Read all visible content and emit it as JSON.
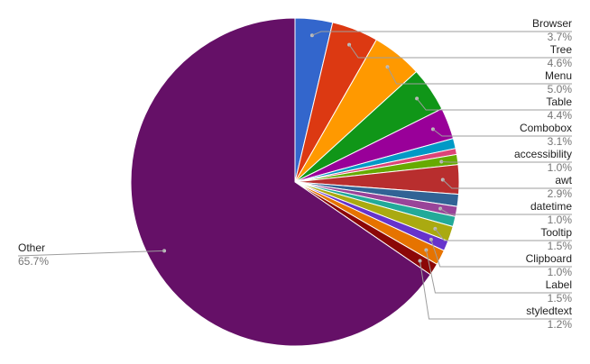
{
  "chart_data": {
    "type": "pie",
    "title": "",
    "slices": [
      {
        "label": "Browser",
        "value": 3.7,
        "display": "3.7%",
        "color": "#3366cc"
      },
      {
        "label": "Tree",
        "value": 4.6,
        "display": "4.6%",
        "color": "#dc3912"
      },
      {
        "label": "Menu",
        "value": 5.0,
        "display": "5.0%",
        "color": "#ff9900"
      },
      {
        "label": "Table",
        "value": 4.4,
        "display": "4.4%",
        "color": "#109618"
      },
      {
        "label": "Combobox",
        "value": 3.1,
        "display": "3.1%",
        "color": "#990099"
      },
      {
        "label": "",
        "value": 1.0,
        "display": "",
        "color": "#0099c6"
      },
      {
        "label": "",
        "value": 0.6,
        "display": "",
        "color": "#dd4477"
      },
      {
        "label": "accessibility",
        "value": 1.0,
        "display": "1.0%",
        "color": "#66aa00"
      },
      {
        "label": "awt",
        "value": 2.9,
        "display": "2.9%",
        "color": "#b82e2e"
      },
      {
        "label": "",
        "value": 1.2,
        "display": "",
        "color": "#316395"
      },
      {
        "label": "datetime",
        "value": 1.0,
        "display": "1.0%",
        "color": "#994499"
      },
      {
        "label": "",
        "value": 1.0,
        "display": "",
        "color": "#22aa99"
      },
      {
        "label": "Tooltip",
        "value": 1.5,
        "display": "1.5%",
        "color": "#aaaa11"
      },
      {
        "label": "Clipboard",
        "value": 1.0,
        "display": "1.0%",
        "color": "#6633cc"
      },
      {
        "label": "Label",
        "value": 1.5,
        "display": "1.5%",
        "color": "#e67300"
      },
      {
        "label": "styledtext",
        "value": 1.2,
        "display": "1.2%",
        "color": "#8b0707"
      },
      {
        "label": "Other",
        "value": 65.7,
        "display": "65.7%",
        "color": "#651067"
      }
    ]
  }
}
